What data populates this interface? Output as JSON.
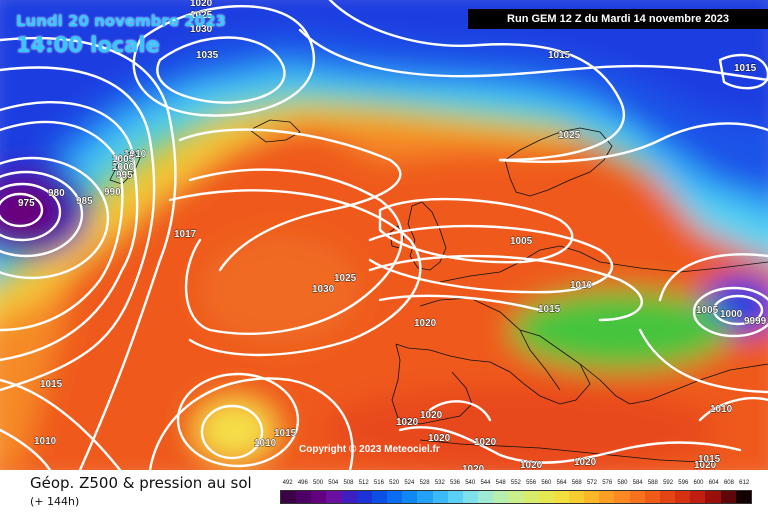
{
  "header": {
    "date_text": "Lundi 20 novembre 2023",
    "time_text": "14:00 locale",
    "run_text": "Run GEM 12 Z du Mardi 14 novembre 2023"
  },
  "copyright": "Copyright © 2023 Meteociel.fr",
  "footer": {
    "title": "Géop. Z500 & pression au sol",
    "subtitle": "(+ 144h)"
  },
  "legend": {
    "labels": [
      "492",
      "496",
      "500",
      "504",
      "508",
      "512",
      "516",
      "520",
      "524",
      "528",
      "532",
      "536",
      "540",
      "544",
      "548",
      "552",
      "556",
      "560",
      "564",
      "568",
      "572",
      "576",
      "580",
      "584",
      "588",
      "592",
      "596",
      "600",
      "604",
      "608",
      "612"
    ],
    "colors": [
      "#3b0046",
      "#4c0063",
      "#62007f",
      "#6a0fa0",
      "#3d1ec0",
      "#1b32d8",
      "#0a50e6",
      "#0a6cf0",
      "#0f88f5",
      "#22a2f7",
      "#3cbaf8",
      "#5ad0f5",
      "#7ee0ea",
      "#9eead2",
      "#b8efae",
      "#c9f08a",
      "#d8ee6a",
      "#e6e852",
      "#f2e040",
      "#f8cd30",
      "#fab828",
      "#fb9f24",
      "#fb8820",
      "#f6721c",
      "#ef5c18",
      "#e44414",
      "#d63012",
      "#c01e10",
      "#9a0e0c",
      "#5e0608",
      "#140202"
    ]
  },
  "map": {
    "colors": {
      "deep_purple": "#6a0078",
      "blue": "#1a3ee6",
      "light_blue": "#2fa8f5",
      "cyan": "#5cd6f0",
      "green": "#46c43c",
      "yellow": "#ecd84a",
      "orange": "#f59028",
      "red_orange": "#ec5420",
      "isobar": "#ffffff",
      "coastline": "#111111"
    },
    "isobar_labels": [
      {
        "id": "lbl-1020-top",
        "text": "1020"
      },
      {
        "id": "lbl-1025-top",
        "text": "1025"
      },
      {
        "id": "lbl-1030-top",
        "text": "1030"
      },
      {
        "id": "lbl-1035",
        "text": "1035"
      },
      {
        "id": "lbl-1015-north",
        "text": "1015"
      },
      {
        "id": "lbl-1015-ne",
        "text": "1015"
      },
      {
        "id": "lbl-1025-scan",
        "text": "1025"
      },
      {
        "id": "lbl-1010-ice",
        "text": "1010"
      },
      {
        "id": "lbl-1005-ice",
        "text": "1005"
      },
      {
        "id": "lbl-1000-ice",
        "text": "1000"
      },
      {
        "id": "lbl-995-ice",
        "text": "995"
      },
      {
        "id": "lbl-990",
        "text": "990"
      },
      {
        "id": "lbl-980",
        "text": "980"
      },
      {
        "id": "lbl-985",
        "text": "985"
      },
      {
        "id": "lbl-975",
        "text": "975"
      },
      {
        "id": "lbl-1017",
        "text": "1017"
      },
      {
        "id": "lbl-1005-uk",
        "text": "1005"
      },
      {
        "id": "lbl-1025-mid",
        "text": "1025"
      },
      {
        "id": "lbl-1030-mid",
        "text": "1030"
      },
      {
        "id": "lbl-1010-eu",
        "text": "1010"
      },
      {
        "id": "lbl-1015-eu",
        "text": "1015"
      },
      {
        "id": "lbl-1020-fr",
        "text": "1020"
      },
      {
        "id": "lbl-1005-east",
        "text": "1005"
      },
      {
        "id": "lbl-1000-east",
        "text": "1000"
      },
      {
        "id": "lbl-999-east",
        "text": "9999"
      },
      {
        "id": "lbl-1015-west",
        "text": "1015"
      },
      {
        "id": "lbl-1010-sw",
        "text": "1010"
      },
      {
        "id": "lbl-1010-az",
        "text": "1010"
      },
      {
        "id": "lbl-1015-az",
        "text": "1015"
      },
      {
        "id": "lbl-1020-sp",
        "text": "1020"
      },
      {
        "id": "lbl-1020-med1",
        "text": "1020"
      },
      {
        "id": "lbl-1020-med2",
        "text": "1020"
      },
      {
        "id": "lbl-1020-med3",
        "text": "1020"
      },
      {
        "id": "lbl-1020-af1",
        "text": "1020"
      },
      {
        "id": "lbl-1020-af2",
        "text": "1020"
      },
      {
        "id": "lbl-1020-af3",
        "text": "1020"
      },
      {
        "id": "lbl-1020-af4",
        "text": "1020"
      },
      {
        "id": "lbl-1010-se",
        "text": "1010"
      },
      {
        "id": "lbl-1015-se",
        "text": "1015"
      }
    ]
  }
}
